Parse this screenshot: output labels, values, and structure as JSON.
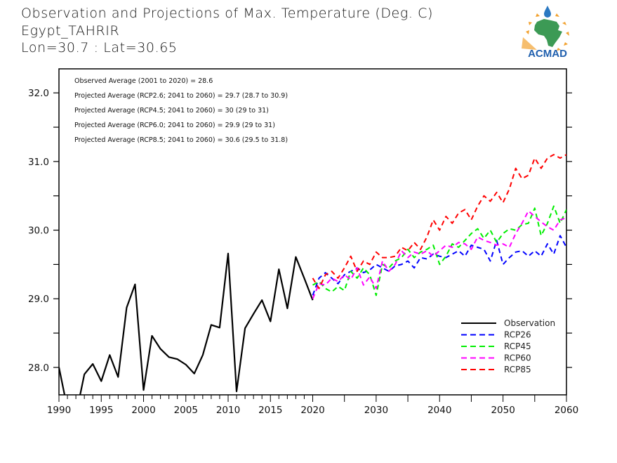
{
  "header": {
    "title": "Observation and Projections of Max. Temperature (Deg. C)",
    "station": "Egypt_TAHRIR",
    "coords": "Lon=30.7 : Lat=30.65"
  },
  "logo": {
    "text": "ACMAD",
    "icon": "acmad-africa-logo-icon",
    "colors": {
      "text": "#1f5fae",
      "map": "#3c9a55",
      "sun": "#f2a230",
      "drop": "#2a78c2"
    }
  },
  "annotations": [
    "Observed Average (2001 to 2020) = 28.6",
    "Projected Average (RCP2.6; 2041 to 2060) = 29.7 (28.7 to 30.9)",
    "Projected Average (RCP4.5; 2041 to 2060) = 30 (29 to 31)",
    "Projected Average (RCP6.0; 2041 to 2060) = 29.9 (29 to 31)",
    "Projected Average (RCP8.5; 2041 to 2060) = 30.6 (29.5 to 31.8)"
  ],
  "chart_data": {
    "type": "line",
    "title": "Observation and Projections of Max. Temperature (Deg. C)",
    "xlabel": "",
    "ylabel": "",
    "ylim": [
      27.6,
      32.35
    ],
    "xlim": [
      1990,
      2060
    ],
    "x_axis_note": "piecewise scale: 1990-2020 and 2020-2060 occupy equal widths",
    "yticks": [
      28.0,
      29.0,
      30.0,
      31.0,
      32.0
    ],
    "ytick_labels": [
      "28.0",
      "29.0",
      "30.0",
      "31.0",
      "32.0"
    ],
    "xticks": [
      1990,
      1995,
      2000,
      2005,
      2010,
      2015,
      2020,
      2030,
      2040,
      2050,
      2060
    ],
    "xtick_labels": [
      "1990",
      "1995",
      "2000",
      "2005",
      "2010",
      "2015",
      "2020",
      "2030",
      "2040",
      "2050",
      "2060"
    ],
    "grid": false,
    "legend_position": "bottom-right",
    "series": [
      {
        "name": "Observation",
        "color": "#000000",
        "style": "solid",
        "x": [
          1990,
          1991,
          1992,
          1993,
          1994,
          1995,
          1996,
          1997,
          1998,
          1999,
          2000,
          2001,
          2002,
          2003,
          2004,
          2005,
          2006,
          2007,
          2008,
          2009,
          2010,
          2011,
          2012,
          2013,
          2014,
          2015,
          2016,
          2017,
          2018,
          2019,
          2020
        ],
        "values": [
          28.0,
          27.4,
          27.3,
          27.9,
          28.05,
          27.8,
          28.18,
          27.86,
          28.87,
          29.21,
          27.67,
          28.46,
          28.27,
          28.15,
          28.12,
          28.04,
          27.91,
          28.18,
          28.62,
          28.58,
          29.66,
          27.65,
          28.57,
          28.78,
          28.98,
          28.67,
          29.43,
          28.86,
          29.61,
          29.3,
          28.98
        ]
      },
      {
        "name": "RCP26",
        "color": "#0000ff",
        "style": "dashed",
        "x": [
          2020,
          2021,
          2022,
          2023,
          2024,
          2025,
          2026,
          2027,
          2028,
          2029,
          2030,
          2031,
          2032,
          2033,
          2034,
          2035,
          2036,
          2037,
          2038,
          2039,
          2040,
          2041,
          2042,
          2043,
          2044,
          2045,
          2046,
          2047,
          2048,
          2049,
          2050,
          2051,
          2052,
          2053,
          2054,
          2055,
          2056,
          2057,
          2058,
          2059,
          2060
        ],
        "values": [
          29.05,
          29.3,
          29.38,
          29.3,
          29.22,
          29.35,
          29.4,
          29.45,
          29.38,
          29.42,
          29.5,
          29.45,
          29.4,
          29.48,
          29.5,
          29.55,
          29.45,
          29.6,
          29.58,
          29.65,
          29.62,
          29.6,
          29.65,
          29.7,
          29.62,
          29.78,
          29.75,
          29.72,
          29.55,
          29.85,
          29.5,
          29.6,
          29.68,
          29.7,
          29.62,
          29.7,
          29.62,
          29.8,
          29.65,
          29.92,
          29.75
        ]
      },
      {
        "name": "RCP45",
        "color": "#00ee00",
        "style": "dashed",
        "x": [
          2020,
          2021,
          2022,
          2023,
          2024,
          2025,
          2026,
          2027,
          2028,
          2029,
          2030,
          2031,
          2032,
          2033,
          2034,
          2035,
          2036,
          2037,
          2038,
          2039,
          2040,
          2041,
          2042,
          2043,
          2044,
          2045,
          2046,
          2047,
          2048,
          2049,
          2050,
          2051,
          2052,
          2053,
          2054,
          2055,
          2056,
          2057,
          2058,
          2059,
          2060
        ],
        "values": [
          29.2,
          29.25,
          29.15,
          29.1,
          29.18,
          29.12,
          29.4,
          29.3,
          29.45,
          29.35,
          29.05,
          29.5,
          29.45,
          29.55,
          29.6,
          29.72,
          29.6,
          29.68,
          29.72,
          29.78,
          29.5,
          29.62,
          29.8,
          29.75,
          29.85,
          29.95,
          30.02,
          29.88,
          30.0,
          29.82,
          29.95,
          30.02,
          30.0,
          30.08,
          30.1,
          30.32,
          29.92,
          30.1,
          30.35,
          30.1,
          30.3
        ]
      },
      {
        "name": "RCP60",
        "color": "#ff00ff",
        "style": "dashed",
        "x": [
          2020,
          2021,
          2022,
          2023,
          2024,
          2025,
          2026,
          2027,
          2028,
          2029,
          2030,
          2031,
          2032,
          2033,
          2034,
          2035,
          2036,
          2037,
          2038,
          2039,
          2040,
          2041,
          2042,
          2043,
          2044,
          2045,
          2046,
          2047,
          2048,
          2049,
          2050,
          2051,
          2052,
          2053,
          2054,
          2055,
          2056,
          2057,
          2058,
          2059,
          2060
        ],
        "values": [
          29.0,
          29.22,
          29.2,
          29.3,
          29.25,
          29.35,
          29.28,
          29.45,
          29.2,
          29.32,
          29.15,
          29.55,
          29.4,
          29.5,
          29.7,
          29.6,
          29.68,
          29.65,
          29.7,
          29.62,
          29.7,
          29.78,
          29.75,
          29.82,
          29.8,
          29.72,
          29.9,
          29.85,
          29.82,
          29.78,
          29.8,
          29.75,
          29.95,
          30.1,
          30.28,
          30.2,
          30.12,
          30.05,
          30.0,
          30.15,
          30.18
        ]
      },
      {
        "name": "RCP85",
        "color": "#ff0000",
        "style": "dashed",
        "x": [
          2020,
          2021,
          2022,
          2023,
          2024,
          2025,
          2026,
          2027,
          2028,
          2029,
          2030,
          2031,
          2032,
          2033,
          2034,
          2035,
          2036,
          2037,
          2038,
          2039,
          2040,
          2041,
          2042,
          2043,
          2044,
          2045,
          2046,
          2047,
          2048,
          2049,
          2050,
          2051,
          2052,
          2053,
          2054,
          2055,
          2056,
          2057,
          2058,
          2059,
          2060
        ],
        "values": [
          29.3,
          29.15,
          29.35,
          29.4,
          29.3,
          29.45,
          29.62,
          29.4,
          29.55,
          29.5,
          29.68,
          29.6,
          29.6,
          29.62,
          29.75,
          29.7,
          29.82,
          29.72,
          29.9,
          30.15,
          30.0,
          30.2,
          30.1,
          30.25,
          30.3,
          30.15,
          30.35,
          30.5,
          30.42,
          30.55,
          30.4,
          30.6,
          30.9,
          30.75,
          30.8,
          31.05,
          30.9,
          31.05,
          31.1,
          31.05,
          31.1
        ]
      }
    ],
    "annotations": [
      "Observed Average (2001 to 2020) = 28.6",
      "Projected Average (RCP2.6; 2041 to 2060) = 29.7 (28.7 to 30.9)",
      "Projected Average (RCP4.5; 2041 to 2060) = 30 (29 to 31)",
      "Projected Average (RCP6.0; 2041 to 2060) = 29.9 (29 to 31)",
      "Projected Average (RCP8.5; 2041 to 2060) = 30.6 (29.5 to 31.8)"
    ]
  }
}
